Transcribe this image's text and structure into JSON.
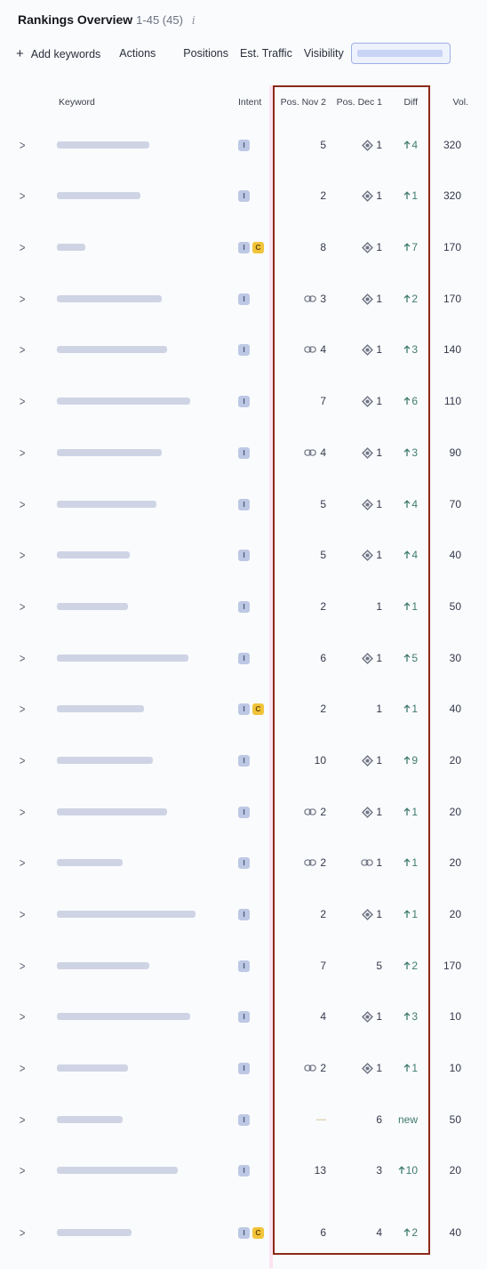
{
  "header": {
    "title": "Rankings Overview",
    "count": "1-45 (45)",
    "info_glyph": "i"
  },
  "toolbar": {
    "add_keywords": "Add keywords",
    "actions": "Actions",
    "positions": "Positions",
    "est_traffic": "Est. Traffic",
    "visibility": "Visibility"
  },
  "columns": {
    "keyword": "Keyword",
    "intent": "Intent",
    "pos_nov": "Pos. Nov 2",
    "pos_dec": "Pos. Dec 1",
    "diff": "Diff",
    "vol": "Vol."
  },
  "colors": {
    "accent": "#8b2a1a",
    "up": "#3e7b6d",
    "intent_i": "#bdc8e4",
    "intent_c": "#f1c43a"
  },
  "rows": [
    {
      "intent": [
        "I"
      ],
      "nov": "5",
      "nov_icon": "",
      "dec": "1",
      "dec_icon": "serp-feature-icon",
      "diff": "4",
      "diff_dir": "up",
      "vol": "320"
    },
    {
      "intent": [
        "I"
      ],
      "nov": "2",
      "nov_icon": "",
      "dec": "1",
      "dec_icon": "serp-feature-icon",
      "diff": "1",
      "diff_dir": "up",
      "vol": "320"
    },
    {
      "intent": [
        "I",
        "C"
      ],
      "nov": "8",
      "nov_icon": "",
      "dec": "1",
      "dec_icon": "serp-feature-icon",
      "diff": "7",
      "diff_dir": "up",
      "vol": "170"
    },
    {
      "intent": [
        "I"
      ],
      "nov": "3",
      "nov_icon": "link-icon",
      "dec": "1",
      "dec_icon": "serp-feature-icon",
      "diff": "2",
      "diff_dir": "up",
      "vol": "170"
    },
    {
      "intent": [
        "I"
      ],
      "nov": "4",
      "nov_icon": "link-icon",
      "dec": "1",
      "dec_icon": "serp-feature-icon",
      "diff": "3",
      "diff_dir": "up",
      "vol": "140"
    },
    {
      "intent": [
        "I"
      ],
      "nov": "7",
      "nov_icon": "",
      "dec": "1",
      "dec_icon": "serp-feature-icon",
      "diff": "6",
      "diff_dir": "up",
      "vol": "110"
    },
    {
      "intent": [
        "I"
      ],
      "nov": "4",
      "nov_icon": "link-icon",
      "dec": "1",
      "dec_icon": "serp-feature-icon",
      "diff": "3",
      "diff_dir": "up",
      "vol": "90"
    },
    {
      "intent": [
        "I"
      ],
      "nov": "5",
      "nov_icon": "",
      "dec": "1",
      "dec_icon": "serp-feature-icon",
      "diff": "4",
      "diff_dir": "up",
      "vol": "70"
    },
    {
      "intent": [
        "I"
      ],
      "nov": "5",
      "nov_icon": "",
      "dec": "1",
      "dec_icon": "serp-feature-icon",
      "diff": "4",
      "diff_dir": "up",
      "vol": "40"
    },
    {
      "intent": [
        "I"
      ],
      "nov": "2",
      "nov_icon": "",
      "dec": "1",
      "dec_icon": "",
      "diff": "1",
      "diff_dir": "up",
      "vol": "50"
    },
    {
      "intent": [
        "I"
      ],
      "nov": "6",
      "nov_icon": "",
      "dec": "1",
      "dec_icon": "serp-feature-icon",
      "diff": "5",
      "diff_dir": "up",
      "vol": "30"
    },
    {
      "intent": [
        "I",
        "C"
      ],
      "nov": "2",
      "nov_icon": "",
      "dec": "1",
      "dec_icon": "",
      "diff": "1",
      "diff_dir": "up",
      "vol": "40"
    },
    {
      "intent": [
        "I"
      ],
      "nov": "10",
      "nov_icon": "",
      "dec": "1",
      "dec_icon": "serp-feature-icon",
      "diff": "9",
      "diff_dir": "up",
      "vol": "20"
    },
    {
      "intent": [
        "I"
      ],
      "nov": "2",
      "nov_icon": "link-icon",
      "dec": "1",
      "dec_icon": "serp-feature-icon",
      "diff": "1",
      "diff_dir": "up",
      "vol": "20"
    },
    {
      "intent": [
        "I"
      ],
      "nov": "2",
      "nov_icon": "link-icon",
      "dec": "1",
      "dec_icon": "link-icon",
      "diff": "1",
      "diff_dir": "up",
      "vol": "20"
    },
    {
      "intent": [
        "I"
      ],
      "nov": "2",
      "nov_icon": "",
      "dec": "1",
      "dec_icon": "serp-feature-icon",
      "diff": "1",
      "diff_dir": "up",
      "vol": "20"
    },
    {
      "intent": [
        "I"
      ],
      "nov": "7",
      "nov_icon": "",
      "dec": "5",
      "dec_icon": "",
      "diff": "2",
      "diff_dir": "up",
      "vol": "170"
    },
    {
      "intent": [
        "I"
      ],
      "nov": "4",
      "nov_icon": "",
      "dec": "1",
      "dec_icon": "serp-feature-icon",
      "diff": "3",
      "diff_dir": "up",
      "vol": "10"
    },
    {
      "intent": [
        "I"
      ],
      "nov": "2",
      "nov_icon": "link-icon",
      "dec": "1",
      "dec_icon": "serp-feature-icon",
      "diff": "1",
      "diff_dir": "up",
      "vol": "10"
    },
    {
      "intent": [
        "I"
      ],
      "nov": "—",
      "nov_icon": "",
      "dec": "6",
      "dec_icon": "",
      "diff": "new",
      "diff_dir": "new",
      "vol": "50"
    },
    {
      "intent": [
        "I"
      ],
      "nov": "13",
      "nov_icon": "",
      "dec": "3",
      "dec_icon": "",
      "diff": "10",
      "diff_dir": "up",
      "vol": "20"
    },
    {
      "intent": [
        "I",
        "C"
      ],
      "nov": "6",
      "nov_icon": "",
      "dec": "4",
      "dec_icon": "",
      "diff": "2",
      "diff_dir": "up",
      "vol": "40"
    }
  ]
}
